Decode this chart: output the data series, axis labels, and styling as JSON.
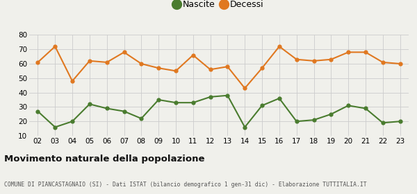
{
  "years": [
    2,
    3,
    4,
    5,
    6,
    7,
    8,
    9,
    10,
    11,
    12,
    13,
    14,
    15,
    16,
    17,
    18,
    19,
    20,
    21,
    22,
    23
  ],
  "nascite": [
    27,
    16,
    20,
    32,
    29,
    27,
    22,
    35,
    33,
    33,
    37,
    38,
    16,
    31,
    36,
    20,
    21,
    25,
    31,
    29,
    19,
    20
  ],
  "decessi": [
    61,
    72,
    48,
    62,
    61,
    68,
    60,
    57,
    55,
    66,
    56,
    58,
    43,
    57,
    72,
    63,
    62,
    63,
    68,
    68,
    61,
    60
  ],
  "nascite_color": "#4a7c2f",
  "decessi_color": "#e07820",
  "title": "Movimento naturale della popolazione",
  "subtitle": "COMUNE DI PIANCASTAGNAIO (SI) - Dati ISTAT (bilancio demografico 1 gen-31 dic) - Elaborazione TUTTITALIA.IT",
  "ylim": [
    10,
    80
  ],
  "yticks": [
    10,
    20,
    30,
    40,
    50,
    60,
    70,
    80
  ],
  "background_color": "#f0f0eb",
  "grid_color": "#cccccc",
  "legend_nascite": "Nascite",
  "legend_decessi": "Decessi"
}
